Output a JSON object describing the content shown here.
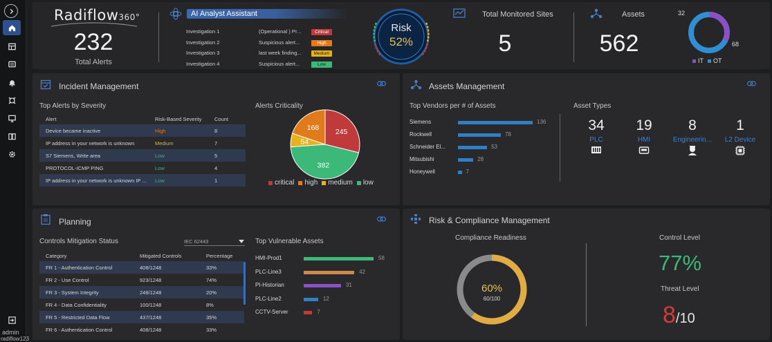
{
  "app": {
    "name": "Radiflow",
    "suffix": "360°"
  },
  "user": {
    "name": "admin",
    "id": "radiflow123"
  },
  "colors": {
    "accent": "#3b6fb6",
    "critical": "#c0393b",
    "high": "#e07a1a",
    "medium": "#e8b21f",
    "low": "#3cb878",
    "it": "#8b4fc6",
    "ot": "#2f8fd2"
  },
  "header": {
    "total_alerts": {
      "value": "232",
      "label": "Total Alerts"
    },
    "ai": {
      "title": "AI Analyst Assistant",
      "rows": [
        {
          "name": "Investigation 1",
          "desc": "(Operational ) Pr...",
          "severity": "Critical",
          "severity_key": "critical"
        },
        {
          "name": "Investigation 2",
          "desc": "Suspicious alert...",
          "severity": "High",
          "severity_key": "high"
        },
        {
          "name": "Investigation 3",
          "desc": "last week finding...",
          "severity": "Medium",
          "severity_key": "medium"
        },
        {
          "name": "Investigation 4",
          "desc": "Suspicious alert...",
          "severity": "Low",
          "severity_key": "low"
        }
      ]
    },
    "risk": {
      "label": "Risk",
      "value": "52%"
    },
    "sites": {
      "label": "Total Monitored Sites",
      "value": "5"
    },
    "assets": {
      "label": "Assets",
      "value": "562",
      "it_value": "32",
      "ot_value": "68",
      "it_label": "IT",
      "ot_label": "OT"
    }
  },
  "incident": {
    "title": "Incident Management",
    "alerts_title": "Top Alerts by Severity",
    "columns": [
      "Alert",
      "Risk-Based Severity",
      "Count"
    ],
    "rows": [
      {
        "alert": "Device became inactive",
        "severity": "High",
        "severity_key": "high",
        "count": "8"
      },
      {
        "alert": "IP address in your network is unknown",
        "severity": "Medium",
        "severity_key": "medium",
        "count": "7"
      },
      {
        "alert": "S7 Siemens, Write area",
        "severity": "Low",
        "severity_key": "low",
        "count": "5"
      },
      {
        "alert": "PROTOCOL-ICMP PING",
        "severity": "Low",
        "severity_key": "low",
        "count": "4"
      },
      {
        "alert": "IP address in your network is unknown IP ...",
        "severity": "Low",
        "severity_key": "low",
        "count": "1"
      }
    ],
    "criticality_title": "Alerts Criticality"
  },
  "chart_data": {
    "type": "pie",
    "title": "Alerts Criticality",
    "categories": [
      "critical",
      "high",
      "medium",
      "low"
    ],
    "values": [
      245,
      168,
      54,
      382
    ],
    "colors": [
      "#c0393b",
      "#e07a1a",
      "#e8b21f",
      "#3cb878"
    ],
    "legend": "bottom"
  },
  "assets_mgmt": {
    "title": "Assets Management",
    "vendors_title": "Top Vendors per # of Assets",
    "vendors": [
      {
        "name": "Siemens",
        "value": 136
      },
      {
        "name": "Rockwell",
        "value": 78
      },
      {
        "name": "Schneider El...",
        "value": 53
      },
      {
        "name": "Mitsubishi",
        "value": 28
      },
      {
        "name": "Honeywell",
        "value": 7
      }
    ],
    "types_title": "Asset Types",
    "types": [
      {
        "count": "34",
        "label": "PLC",
        "icon": "plc-icon"
      },
      {
        "count": "19",
        "label": "HMI",
        "icon": "hmi-icon"
      },
      {
        "count": "8",
        "label": "Engineerin...",
        "icon": "engineering-icon"
      },
      {
        "count": "1",
        "label": "L2 Device",
        "icon": "l2-device-icon"
      }
    ]
  },
  "planning": {
    "title": "Planning",
    "controls_title": "Controls Mitigation Status",
    "standard": "IEC 62443",
    "columns": [
      "Category",
      "Mitigated Controls",
      "Percentage"
    ],
    "rows": [
      {
        "category": "FR 1 - Authentication Control",
        "mitigated": "408/1248",
        "pct": "33%"
      },
      {
        "category": "FR 2 - Use Control",
        "mitigated": "923/1248",
        "pct": "74%"
      },
      {
        "category": "FR 3 - System Integrity",
        "mitigated": "248/1248",
        "pct": "20%"
      },
      {
        "category": "FR 4 - Data Confidentiality",
        "mitigated": "100/1248",
        "pct": "8%"
      },
      {
        "category": "FR 5 - Restricted Data Flow",
        "mitigated": "437/1248",
        "pct": "35%"
      },
      {
        "category": "FR 6 - Authentication Control",
        "mitigated": "408/1248",
        "pct": "33%"
      }
    ],
    "vuln_title": "Top Vulnerable Assets",
    "vuln": [
      {
        "name": "HMI-Prod1",
        "value": 58,
        "color": "#3cb878"
      },
      {
        "name": "PLC-Line3",
        "value": 42,
        "color": "#d0894a"
      },
      {
        "name": "PI-Historian",
        "value": 31,
        "color": "#8b4fc6"
      },
      {
        "name": "PLC-Line2",
        "value": 12,
        "color": "#2f7fc9"
      },
      {
        "name": "CCTV-Server",
        "value": 7,
        "color": "#c0393b"
      }
    ]
  },
  "compliance": {
    "title": "Risk & Compliance Management",
    "readiness_title": "Compliance Readiness",
    "readiness_pct": "60%",
    "readiness_frac": "60/100",
    "readiness_value": 0.6,
    "control_level_title": "Control Level",
    "control_level": "77%",
    "threat_level_title": "Threat Level",
    "threat_level": "8",
    "threat_max": "/10"
  }
}
